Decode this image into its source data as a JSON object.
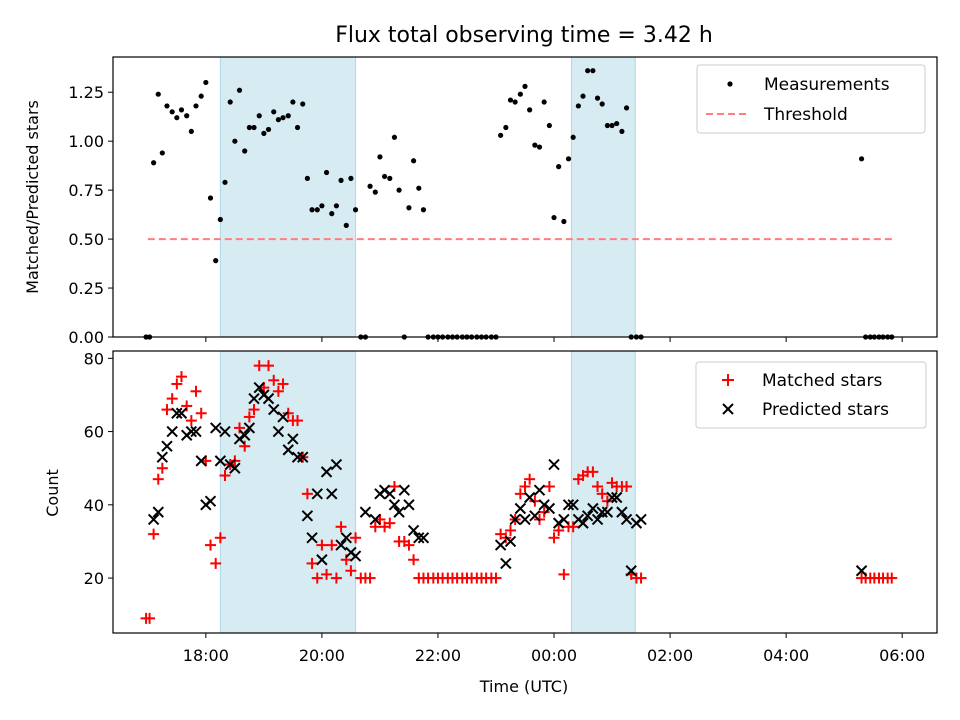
{
  "chart_data": [
    {
      "type": "scatter",
      "title": "Flux total observing time = 3.42 h",
      "xlabel": "",
      "ylabel": "Matched/Predicted stars",
      "xlim": [
        16.4,
        30.6
      ],
      "ylim": [
        0,
        1.43
      ],
      "yticks": [
        0,
        0.25,
        0.5,
        0.75,
        1.0,
        1.25
      ],
      "ytick_labels": [
        "0.00",
        "0.25",
        "0.50",
        "0.75",
        "1.00",
        "1.25"
      ],
      "shaded_intervals": [
        [
          18.25,
          20.58
        ],
        [
          24.3,
          25.4
        ]
      ],
      "threshold": {
        "value": 0.5,
        "x": [
          17.0,
          29.85
        ],
        "color": "#ff7f7f"
      },
      "legend": [
        "Measurements",
        "Threshold"
      ],
      "legend_position": "top-right",
      "series": [
        {
          "name": "Measurements",
          "color": "#000000",
          "x": [
            16.97,
            17.03,
            17.1,
            17.18,
            17.25,
            17.33,
            17.42,
            17.5,
            17.58,
            17.67,
            17.75,
            17.83,
            17.92,
            18.0,
            18.08,
            18.17,
            18.25,
            18.33,
            18.42,
            18.5,
            18.58,
            18.67,
            18.75,
            18.83,
            18.92,
            19.0,
            19.08,
            19.17,
            19.25,
            19.33,
            19.42,
            19.5,
            19.58,
            19.67,
            19.75,
            19.83,
            19.92,
            20.0,
            20.08,
            20.17,
            20.25,
            20.33,
            20.42,
            20.5,
            20.58,
            20.67,
            20.75,
            20.83,
            20.92,
            21.0,
            21.08,
            21.17,
            21.25,
            21.33,
            21.42,
            21.5,
            21.58,
            21.67,
            21.75,
            21.83,
            21.92,
            22.0,
            22.08,
            22.17,
            22.25,
            22.33,
            22.42,
            22.5,
            22.58,
            22.67,
            22.75,
            22.83,
            22.92,
            23.0,
            23.08,
            23.17,
            23.25,
            23.33,
            23.42,
            23.5,
            23.58,
            23.67,
            23.75,
            23.83,
            23.92,
            24.0,
            24.08,
            24.17,
            24.25,
            24.33,
            24.42,
            24.5,
            24.58,
            24.67,
            24.75,
            24.83,
            24.92,
            25.0,
            25.08,
            25.17,
            25.25,
            25.33,
            25.42,
            25.5,
            29.3,
            29.37,
            29.45,
            29.52,
            29.6,
            29.67,
            29.75,
            29.82
          ],
          "y": [
            0.0,
            0.0,
            0.89,
            1.24,
            0.94,
            1.18,
            1.15,
            1.12,
            1.16,
            1.13,
            1.05,
            1.18,
            1.23,
            1.3,
            0.71,
            0.39,
            0.6,
            0.79,
            1.2,
            1.0,
            1.26,
            0.95,
            1.07,
            1.07,
            1.13,
            1.04,
            1.06,
            1.15,
            1.11,
            1.12,
            1.13,
            1.2,
            1.07,
            1.19,
            0.81,
            0.65,
            0.65,
            0.67,
            0.84,
            0.63,
            0.67,
            0.8,
            0.57,
            0.81,
            0.65,
            0.0,
            0.0,
            0.77,
            0.74,
            0.92,
            0.82,
            0.81,
            1.02,
            0.75,
            0.0,
            0.66,
            0.9,
            0.76,
            0.65,
            0.0,
            0.0,
            0.0,
            0.0,
            0.0,
            0.0,
            0.0,
            0.0,
            0.0,
            0.0,
            0.0,
            0.0,
            0.0,
            0.0,
            0.0,
            1.03,
            1.07,
            1.21,
            1.2,
            1.24,
            1.28,
            1.16,
            0.98,
            0.97,
            1.2,
            1.08,
            0.61,
            0.87,
            0.59,
            0.91,
            1.02,
            1.18,
            1.23,
            1.36,
            1.36,
            1.22,
            1.19,
            1.08,
            1.08,
            1.09,
            1.05,
            1.17,
            0.0,
            0.0,
            0.0,
            0.91,
            0.0,
            0.0,
            0.0,
            0.0,
            0.0,
            0.0,
            0.0
          ],
          "name_y": "ratio"
        }
      ]
    },
    {
      "type": "scatter",
      "title": "",
      "xlabel": "Time (UTC)",
      "ylabel": "Count",
      "xlim": [
        16.4,
        30.6
      ],
      "ylim": [
        5,
        82
      ],
      "xticks": [
        18,
        20,
        22,
        24,
        26,
        28,
        30
      ],
      "xtick_labels": [
        "18:00",
        "20:00",
        "22:00",
        "00:00",
        "02:00",
        "04:00",
        "06:00"
      ],
      "yticks": [
        20,
        40,
        60,
        80
      ],
      "ytick_labels": [
        "20",
        "40",
        "60",
        "80"
      ],
      "shaded_intervals": [
        [
          18.25,
          20.58
        ],
        [
          24.3,
          25.4
        ]
      ],
      "legend": [
        "Matched stars",
        "Predicted stars"
      ],
      "legend_position": "top-right",
      "series": [
        {
          "name": "Matched stars",
          "color": "#ff0000",
          "marker": "+",
          "x": [
            16.97,
            17.03,
            17.1,
            17.18,
            17.25,
            17.33,
            17.42,
            17.5,
            17.58,
            17.67,
            17.75,
            17.83,
            17.92,
            18.0,
            18.08,
            18.17,
            18.25,
            18.33,
            18.42,
            18.5,
            18.58,
            18.67,
            18.75,
            18.83,
            18.92,
            19.0,
            19.08,
            19.17,
            19.25,
            19.33,
            19.42,
            19.5,
            19.58,
            19.67,
            19.75,
            19.83,
            19.92,
            20.0,
            20.08,
            20.17,
            20.25,
            20.33,
            20.42,
            20.5,
            20.58,
            20.67,
            20.75,
            20.83,
            20.92,
            21.0,
            21.08,
            21.17,
            21.25,
            21.33,
            21.42,
            21.5,
            21.58,
            21.67,
            21.75,
            21.83,
            21.92,
            22.0,
            22.08,
            22.17,
            22.25,
            22.33,
            22.42,
            22.5,
            22.58,
            22.67,
            22.75,
            22.83,
            22.92,
            23.0,
            23.08,
            23.17,
            23.25,
            23.33,
            23.42,
            23.5,
            23.58,
            23.67,
            23.75,
            23.83,
            23.92,
            24.0,
            24.08,
            24.17,
            24.25,
            24.33,
            24.42,
            24.5,
            24.58,
            24.67,
            24.75,
            24.83,
            24.92,
            25.0,
            25.08,
            25.17,
            25.25,
            25.33,
            25.42,
            25.5,
            29.3,
            29.37,
            29.45,
            29.52,
            29.6,
            29.67,
            29.75,
            29.82
          ],
          "y": [
            9,
            9,
            32,
            47,
            50,
            66,
            69,
            73,
            75,
            67,
            63,
            71,
            65,
            52,
            29,
            24,
            31,
            48,
            51,
            52,
            61,
            56,
            64,
            66,
            78,
            72,
            78,
            74,
            71,
            73,
            65,
            63,
            63,
            53,
            43,
            24,
            20,
            29,
            21,
            29,
            20,
            34,
            25,
            22,
            31,
            20,
            20,
            20,
            34,
            36,
            34,
            35,
            45,
            30,
            30,
            29,
            25,
            20,
            20,
            20,
            20,
            20,
            20,
            20,
            20,
            20,
            20,
            20,
            20,
            20,
            20,
            20,
            20,
            20,
            32,
            31,
            33,
            36,
            43,
            45,
            47,
            41,
            36,
            38,
            45,
            31,
            33,
            21,
            34,
            34,
            47,
            48,
            49,
            49,
            45,
            43,
            41,
            46,
            45,
            45,
            45,
            21,
            20,
            20,
            20,
            20,
            20,
            20,
            20,
            20,
            20,
            20
          ]
        },
        {
          "name": "Predicted stars",
          "color": "#000000",
          "marker": "x",
          "x": [
            17.1,
            17.18,
            17.25,
            17.33,
            17.42,
            17.5,
            17.58,
            17.67,
            17.75,
            17.83,
            17.92,
            18.0,
            18.08,
            18.17,
            18.25,
            18.33,
            18.42,
            18.5,
            18.58,
            18.67,
            18.75,
            18.83,
            18.92,
            19.0,
            19.08,
            19.17,
            19.25,
            19.33,
            19.42,
            19.5,
            19.58,
            19.67,
            19.75,
            19.83,
            19.92,
            20.0,
            20.08,
            20.17,
            20.25,
            20.33,
            20.42,
            20.5,
            20.58,
            20.75,
            20.92,
            21.0,
            21.08,
            21.17,
            21.25,
            21.33,
            21.42,
            21.5,
            21.58,
            21.67,
            21.75,
            23.08,
            23.17,
            23.25,
            23.33,
            23.42,
            23.5,
            23.58,
            23.67,
            23.75,
            23.83,
            23.92,
            24.0,
            24.08,
            24.17,
            24.25,
            24.33,
            24.42,
            24.5,
            24.58,
            24.67,
            24.75,
            24.83,
            24.92,
            25.0,
            25.08,
            25.17,
            25.25,
            25.33,
            25.42,
            25.5,
            29.3
          ],
          "y": [
            36,
            38,
            53,
            56,
            60,
            65,
            65,
            59,
            60,
            60,
            52,
            40,
            41,
            61,
            52,
            60,
            51,
            50,
            58,
            59,
            61,
            69,
            72,
            70,
            69,
            66,
            60,
            64,
            55,
            58,
            53,
            53,
            37,
            31,
            43,
            25,
            49,
            43,
            51,
            29,
            31,
            27,
            26,
            38,
            36,
            43,
            44,
            43,
            40,
            38,
            44,
            40,
            33,
            31,
            31,
            29,
            24,
            30,
            36,
            39,
            36,
            42,
            37,
            44,
            40,
            39,
            51,
            35,
            36,
            40,
            40,
            36,
            35,
            37,
            39,
            36,
            38,
            38,
            42,
            42,
            38,
            36,
            22,
            35,
            36,
            22
          ],
          "x_fix": true
        }
      ]
    }
  ]
}
